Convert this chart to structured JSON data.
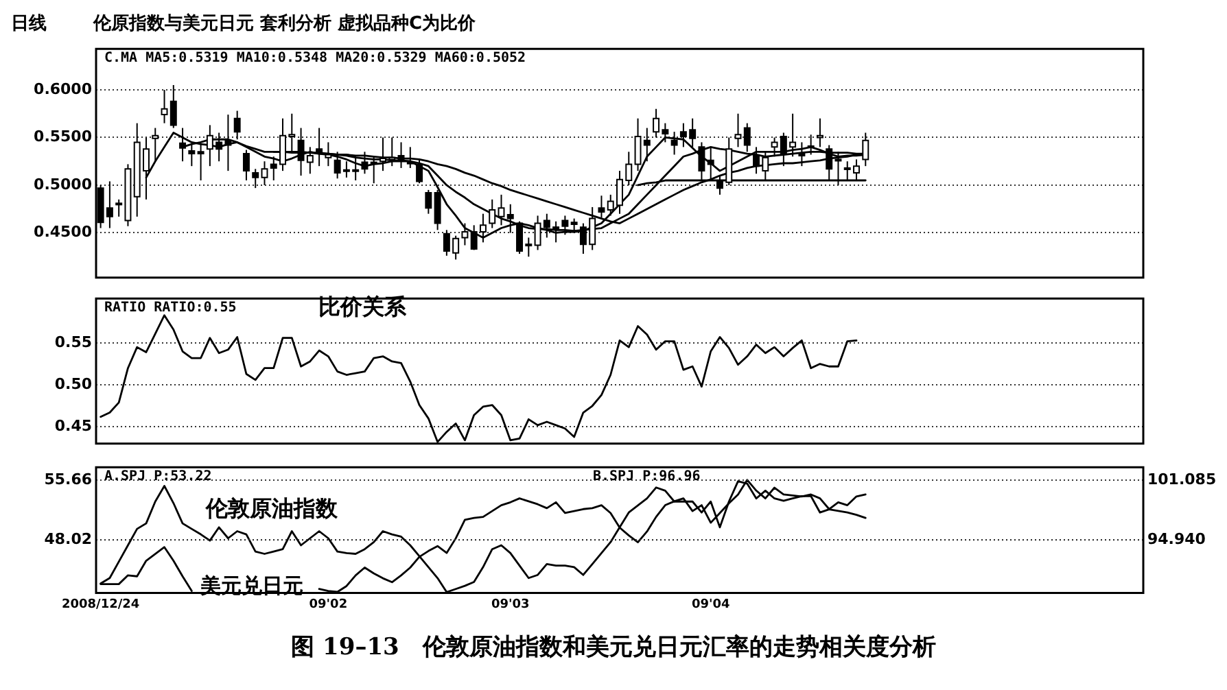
{
  "chart_data": [
    {
      "type": "candlestick",
      "title": "伦原指数与美元日元 套利分析  虚拟品种C为比价",
      "annotations": [
        "日线",
        "C.MA  MA5:0.5319  MA10:0.5348  MA20:0.5329  MA60:0.5052"
      ],
      "color": "#000000",
      "ylim": [
        0.403,
        0.643
      ],
      "yticks": [
        {
          "value": 0.45,
          "label": "0.4500"
        },
        {
          "value": 0.5,
          "label": "0.5000"
        },
        {
          "value": 0.55,
          "label": "0.5500"
        },
        {
          "value": 0.6,
          "label": "0.6000"
        }
      ],
      "grid": "y",
      "tick_labels": "y",
      "categories": [
        null,
        null,
        null,
        null,
        null,
        null,
        null,
        null,
        null,
        null,
        null,
        null,
        null,
        null,
        null,
        null,
        null,
        null,
        null,
        null,
        null,
        null,
        null,
        null,
        null,
        null,
        null,
        null,
        null,
        null,
        null,
        null,
        null,
        null,
        null,
        null,
        null,
        null,
        null,
        null,
        null,
        null,
        null,
        null,
        null,
        null,
        null,
        null,
        null,
        null,
        null,
        null,
        null,
        null,
        null,
        null,
        null,
        null,
        null,
        null,
        null,
        null,
        null,
        null,
        null,
        null,
        null,
        null,
        null,
        null,
        null,
        null,
        null,
        null,
        null,
        null,
        null,
        null,
        null,
        null,
        null,
        null,
        null,
        null,
        null,
        null,
        null,
        null,
        null,
        null,
        null,
        null,
        null,
        null,
        null,
        null,
        null,
        null,
        null,
        null,
        null,
        null,
        null,
        null,
        null,
        null,
        null,
        null,
        null,
        null,
        null,
        null,
        null,
        null,
        null
      ],
      "ohlc": [
        [
          0.497,
          0.5,
          0.455,
          0.461
        ],
        [
          0.476,
          0.504,
          0.455,
          0.467
        ],
        [
          0.481,
          0.485,
          0.467,
          0.48
        ],
        [
          0.463,
          0.522,
          0.457,
          0.517
        ],
        [
          0.488,
          0.565,
          0.467,
          0.545
        ],
        [
          0.515,
          0.55,
          0.485,
          0.538
        ],
        [
          0.549,
          0.56,
          0.525,
          0.552
        ],
        [
          0.574,
          0.6,
          0.565,
          0.58
        ],
        [
          0.588,
          0.605,
          0.56,
          0.563
        ],
        [
          0.544,
          0.56,
          0.525,
          0.539
        ],
        [
          0.536,
          0.543,
          0.52,
          0.533
        ],
        [
          0.535,
          0.543,
          0.505,
          0.533
        ],
        [
          0.538,
          0.563,
          0.52,
          0.552
        ],
        [
          0.545,
          0.555,
          0.525,
          0.538
        ],
        [
          0.547,
          0.574,
          0.515,
          0.542
        ],
        [
          0.57,
          0.578,
          0.548,
          0.556
        ],
        [
          0.533,
          0.537,
          0.505,
          0.515
        ],
        [
          0.513,
          0.517,
          0.497,
          0.508
        ],
        [
          0.508,
          0.525,
          0.5,
          0.517
        ],
        [
          0.522,
          0.53,
          0.505,
          0.518
        ],
        [
          0.522,
          0.57,
          0.515,
          0.552
        ],
        [
          0.551,
          0.575,
          0.535,
          0.553
        ],
        [
          0.547,
          0.56,
          0.51,
          0.526
        ],
        [
          0.524,
          0.54,
          0.512,
          0.531
        ],
        [
          0.538,
          0.56,
          0.52,
          0.533
        ],
        [
          0.529,
          0.545,
          0.52,
          0.532
        ],
        [
          0.526,
          0.535,
          0.507,
          0.513
        ],
        [
          0.516,
          0.525,
          0.508,
          0.515
        ],
        [
          0.516,
          0.53,
          0.505,
          0.515
        ],
        [
          0.524,
          0.535,
          0.512,
          0.517
        ],
        [
          0.524,
          0.53,
          0.502,
          0.523
        ],
        [
          0.525,
          0.55,
          0.515,
          0.528
        ],
        [
          0.527,
          0.55,
          0.52,
          0.529
        ],
        [
          0.531,
          0.545,
          0.518,
          0.526
        ],
        [
          0.524,
          0.54,
          0.518,
          0.523
        ],
        [
          0.522,
          0.528,
          0.502,
          0.504
        ],
        [
          0.492,
          0.495,
          0.47,
          0.476
        ],
        [
          0.492,
          0.495,
          0.453,
          0.46
        ],
        [
          0.449,
          0.453,
          0.426,
          0.431
        ],
        [
          0.429,
          0.447,
          0.422,
          0.444
        ],
        [
          0.445,
          0.46,
          0.437,
          0.451
        ],
        [
          0.451,
          0.458,
          0.432,
          0.433
        ],
        [
          0.451,
          0.47,
          0.44,
          0.458
        ],
        [
          0.46,
          0.485,
          0.455,
          0.474
        ],
        [
          0.467,
          0.49,
          0.458,
          0.476
        ],
        [
          0.469,
          0.48,
          0.45,
          0.465
        ],
        [
          0.46,
          0.462,
          0.428,
          0.431
        ],
        [
          0.438,
          0.445,
          0.425,
          0.437
        ],
        [
          0.437,
          0.468,
          0.432,
          0.46
        ],
        [
          0.463,
          0.47,
          0.445,
          0.456
        ],
        [
          0.456,
          0.462,
          0.44,
          0.455
        ],
        [
          0.463,
          0.468,
          0.448,
          0.457
        ],
        [
          0.461,
          0.465,
          0.45,
          0.459
        ],
        [
          0.456,
          0.46,
          0.428,
          0.438
        ],
        [
          0.438,
          0.477,
          0.432,
          0.465
        ],
        [
          0.476,
          0.489,
          0.466,
          0.472
        ],
        [
          0.474,
          0.49,
          0.468,
          0.483
        ],
        [
          0.479,
          0.515,
          0.47,
          0.506
        ],
        [
          0.505,
          0.535,
          0.5,
          0.522
        ],
        [
          0.522,
          0.57,
          0.515,
          0.551
        ],
        [
          0.547,
          0.56,
          0.525,
          0.542
        ],
        [
          0.556,
          0.58,
          0.55,
          0.57
        ],
        [
          0.558,
          0.565,
          0.545,
          0.554
        ],
        [
          0.547,
          0.556,
          0.532,
          0.542
        ],
        [
          0.556,
          0.565,
          0.54,
          0.551
        ],
        [
          0.558,
          0.57,
          0.54,
          0.549
        ],
        [
          0.54,
          0.545,
          0.505,
          0.515
        ],
        [
          0.526,
          0.54,
          0.506,
          0.522
        ],
        [
          0.504,
          0.51,
          0.49,
          0.497
        ],
        [
          0.503,
          0.55,
          0.5,
          0.538
        ],
        [
          0.549,
          0.575,
          0.54,
          0.553
        ],
        [
          0.56,
          0.565,
          0.535,
          0.542
        ],
        [
          0.531,
          0.54,
          0.512,
          0.52
        ],
        [
          0.515,
          0.535,
          0.505,
          0.529
        ],
        [
          0.54,
          0.55,
          0.53,
          0.545
        ],
        [
          0.551,
          0.555,
          0.52,
          0.533
        ],
        [
          0.54,
          0.575,
          0.53,
          0.545
        ],
        [
          0.533,
          0.545,
          0.52,
          0.531
        ],
        [
          0.541,
          0.553,
          0.532,
          0.54
        ],
        [
          0.55,
          0.57,
          0.54,
          0.552
        ],
        [
          0.538,
          0.542,
          0.505,
          0.517
        ],
        [
          0.527,
          0.535,
          0.5,
          0.526
        ],
        [
          0.518,
          0.525,
          0.505,
          0.517
        ],
        [
          0.513,
          0.527,
          0.505,
          0.52
        ],
        [
          0.527,
          0.555,
          0.52,
          0.547
        ],
        null,
        null,
        null,
        null,
        null,
        null,
        null,
        null,
        null,
        null,
        null,
        null,
        null,
        null,
        null,
        null,
        null,
        null,
        null,
        null,
        null,
        null,
        null,
        null,
        null,
        null,
        null,
        null,
        null,
        null
      ],
      "series": [
        {
          "type": "line",
          "color": "#000000",
          "values": [
            null,
            null,
            null,
            null,
            null,
            0.508,
            0.525,
            0.54,
            0.555,
            0.55,
            0.545,
            0.543,
            0.542,
            0.54,
            0.543,
            0.545,
            0.54,
            0.535,
            0.53,
            0.528,
            0.525,
            0.528,
            0.532,
            0.535,
            0.533,
            0.532,
            0.53,
            0.527,
            0.523,
            0.52,
            0.522,
            0.523,
            0.525,
            0.525,
            0.525,
            0.52,
            0.515,
            0.498,
            0.48,
            0.468,
            0.455,
            0.45,
            0.445,
            0.45,
            0.455,
            0.458,
            0.46,
            0.458,
            0.455,
            0.453,
            0.45,
            0.451,
            0.451,
            0.452,
            0.456,
            0.46,
            0.47,
            0.48,
            0.49,
            0.51,
            0.53,
            0.54,
            0.55,
            0.549,
            0.548,
            0.539,
            0.53,
            0.523,
            0.515,
            0.52,
            0.525,
            0.53,
            0.535,
            0.535,
            0.535,
            0.535,
            0.537,
            0.538,
            0.54,
            0.537,
            0.533,
            0.53,
            0.531,
            0.531,
            0.532,
            null,
            null,
            null,
            null,
            null,
            null,
            null,
            null,
            null,
            null,
            null,
            null,
            null,
            null,
            null,
            null,
            null,
            null,
            null,
            null,
            null,
            null,
            null,
            null,
            null,
            null,
            null,
            null,
            null,
            null
          ]
        },
        {
          "type": "line",
          "color": "#000000",
          "values": [
            null,
            null,
            null,
            null,
            null,
            null,
            null,
            null,
            null,
            0.54,
            0.543,
            0.545,
            0.548,
            0.548,
            0.548,
            0.545,
            0.541,
            0.538,
            0.535,
            0.535,
            0.535,
            0.535,
            0.535,
            0.534,
            0.534,
            0.533,
            0.532,
            0.531,
            0.529,
            0.528,
            0.527,
            0.527,
            0.526,
            0.526,
            0.525,
            0.523,
            0.52,
            0.51,
            0.5,
            0.493,
            0.487,
            0.48,
            0.475,
            0.47,
            0.465,
            0.462,
            0.458,
            0.455,
            0.454,
            0.454,
            0.453,
            0.453,
            0.452,
            0.453,
            0.454,
            0.455,
            0.46,
            0.465,
            0.47,
            0.48,
            0.49,
            0.5,
            0.51,
            0.52,
            0.53,
            0.533,
            0.537,
            0.54,
            0.538,
            0.537,
            0.535,
            0.533,
            0.532,
            0.53,
            0.531,
            0.532,
            0.533,
            0.534,
            0.535,
            0.535,
            0.534,
            0.534,
            0.534,
            0.533,
            0.533,
            null,
            null,
            null,
            null,
            null,
            null,
            null,
            null,
            null,
            null,
            null,
            null,
            null,
            null,
            null,
            null,
            null,
            null,
            null,
            null,
            null,
            null,
            null,
            null,
            null,
            null,
            null,
            null,
            null,
            null
          ]
        },
        {
          "type": "line",
          "color": "#000000",
          "values": [
            null,
            null,
            null,
            null,
            null,
            null,
            null,
            null,
            null,
            null,
            null,
            null,
            null,
            null,
            null,
            null,
            null,
            null,
            null,
            0.535,
            0.535,
            0.534,
            0.534,
            0.534,
            0.533,
            0.533,
            0.532,
            0.532,
            0.531,
            0.531,
            0.53,
            0.529,
            0.529,
            0.528,
            0.528,
            0.527,
            0.525,
            0.522,
            0.52,
            0.517,
            0.513,
            0.51,
            0.506,
            0.502,
            0.499,
            0.495,
            0.492,
            0.489,
            0.486,
            0.483,
            0.48,
            0.477,
            0.474,
            0.471,
            0.468,
            0.465,
            0.462,
            0.46,
            0.465,
            0.47,
            0.475,
            0.48,
            0.485,
            0.49,
            0.495,
            0.499,
            0.503,
            0.506,
            0.51,
            0.513,
            0.515,
            0.518,
            0.52,
            0.521,
            0.522,
            0.523,
            0.523,
            0.524,
            0.525,
            0.526,
            0.528,
            0.529,
            0.53,
            0.532,
            0.533,
            null,
            null,
            null,
            null,
            null,
            null,
            null,
            null,
            null,
            null,
            null,
            null,
            null,
            null,
            null,
            null,
            null,
            null,
            null,
            null,
            null,
            null,
            null,
            null,
            null,
            null,
            null,
            null,
            null,
            null
          ]
        },
        {
          "type": "line",
          "color": "#000000",
          "values": [
            null,
            null,
            null,
            null,
            null,
            null,
            null,
            null,
            null,
            null,
            null,
            null,
            null,
            null,
            null,
            null,
            null,
            null,
            null,
            null,
            null,
            null,
            null,
            null,
            null,
            null,
            null,
            null,
            null,
            null,
            null,
            null,
            null,
            null,
            null,
            null,
            null,
            null,
            null,
            null,
            null,
            null,
            null,
            null,
            null,
            null,
            null,
            null,
            null,
            null,
            null,
            null,
            null,
            null,
            null,
            null,
            null,
            null,
            null,
            0.5,
            0.502,
            0.503,
            0.505,
            0.505,
            0.505,
            0.505,
            0.505,
            0.505,
            0.505,
            0.505,
            0.505,
            0.505,
            0.505,
            0.505,
            0.505,
            0.505,
            0.505,
            0.505,
            0.505,
            0.505,
            0.505,
            0.505,
            0.505,
            0.505,
            0.505,
            null,
            null,
            null,
            null,
            null,
            null,
            null,
            null,
            null,
            null,
            null,
            null,
            null,
            null,
            null,
            null,
            null,
            null,
            null,
            null,
            null,
            null,
            null,
            null,
            null,
            null,
            null,
            null,
            null,
            null
          ]
        }
      ]
    },
    {
      "type": "line",
      "annotations": [
        "RATIO  RATIO:0.55",
        "比价关系"
      ],
      "ylim": [
        0.43,
        0.603
      ],
      "yticks": [
        {
          "value": 0.45,
          "label": "0.45"
        },
        {
          "value": 0.5,
          "label": "0.50"
        },
        {
          "value": 0.55,
          "label": "0.55"
        }
      ],
      "grid": "y",
      "tick_labels": "y",
      "categories": [
        null,
        null,
        null,
        null,
        null,
        null,
        null,
        null,
        null,
        null,
        null,
        null,
        null,
        null,
        null,
        null,
        null,
        null,
        null,
        null,
        null,
        null,
        null,
        null,
        null,
        null,
        null,
        null,
        null,
        null,
        null,
        null,
        null,
        null,
        null,
        null,
        null,
        null,
        null,
        null,
        null,
        null,
        null,
        null,
        null,
        null,
        null,
        null,
        null,
        null,
        null,
        null,
        null,
        null,
        null,
        null,
        null,
        null,
        null,
        null,
        null,
        null,
        null,
        null,
        null,
        null,
        null,
        null,
        null,
        null,
        null,
        null,
        null,
        null,
        null,
        null,
        null,
        null,
        null,
        null,
        null,
        null,
        null,
        null,
        null,
        null,
        null,
        null,
        null,
        null,
        null,
        null,
        null,
        null,
        null,
        null,
        null,
        null,
        null,
        null,
        null,
        null,
        null,
        null,
        null,
        null,
        null,
        null,
        null,
        null,
        null,
        null,
        null,
        null,
        null
      ],
      "series": [
        {
          "color": "#000000",
          "values": [
            0.462,
            0.467,
            0.479,
            0.52,
            0.545,
            0.539,
            0.561,
            0.583,
            0.566,
            0.54,
            0.532,
            0.532,
            0.556,
            0.538,
            0.542,
            0.557,
            0.513,
            0.506,
            0.52,
            0.52,
            0.556,
            0.556,
            0.522,
            0.528,
            0.541,
            0.534,
            0.516,
            0.512,
            0.514,
            0.516,
            0.532,
            0.534,
            0.528,
            0.526,
            0.504,
            0.476,
            0.46,
            0.432,
            0.444,
            0.454,
            0.434,
            0.464,
            0.474,
            0.476,
            0.464,
            0.434,
            0.436,
            0.459,
            0.452,
            0.456,
            0.452,
            0.448,
            0.438,
            0.467,
            0.475,
            0.488,
            0.512,
            0.553,
            0.545,
            0.57,
            0.56,
            0.542,
            0.552,
            0.552,
            0.518,
            0.522,
            0.498,
            0.54,
            0.557,
            0.544,
            0.524,
            0.534,
            0.548,
            0.538,
            0.545,
            0.534,
            0.544,
            0.553,
            0.52,
            0.525,
            0.522,
            0.522,
            0.552,
            0.553,
            null,
            null,
            null,
            null,
            null,
            null,
            null,
            null,
            null,
            null,
            null,
            null,
            null,
            null,
            null,
            null,
            null,
            null,
            null,
            null,
            null,
            null,
            null,
            null,
            null,
            null,
            null,
            null,
            null,
            null,
            null
          ]
        }
      ]
    },
    {
      "type": "line",
      "annotations": [
        "A.SPJ  P:53.22",
        "B.SPJ  P:96.96",
        "图 19–13　伦敦原油指数和美元兑日元汇率的走势相关度分析"
      ],
      "ylim": [
        41.2,
        57.3
      ],
      "yticks": [
        48.02,
        55.66
      ],
      "y2lim": [
        89.5,
        102.4
      ],
      "y2ticks": [
        {
          "value": 94.94,
          "label": "94.940"
        },
        101.085
      ],
      "grid": "y",
      "categories": [
        "2008/12/24",
        null,
        null,
        null,
        null,
        null,
        null,
        null,
        null,
        null,
        null,
        null,
        null,
        null,
        null,
        null,
        null,
        null,
        null,
        null,
        null,
        null,
        null,
        null,
        null,
        "09'02",
        null,
        null,
        null,
        null,
        null,
        null,
        null,
        null,
        null,
        null,
        null,
        null,
        null,
        null,
        null,
        null,
        null,
        null,
        null,
        "09'03",
        null,
        null,
        null,
        null,
        null,
        null,
        null,
        null,
        null,
        null,
        null,
        null,
        null,
        null,
        null,
        null,
        null,
        null,
        null,
        null,
        null,
        "09'04",
        null,
        null,
        null,
        null,
        null,
        null,
        null,
        null,
        null,
        null,
        null,
        null,
        null,
        null,
        null,
        null,
        null,
        null,
        null,
        null,
        null,
        null,
        null,
        null,
        null,
        null,
        null,
        null,
        null,
        null,
        null,
        null,
        null,
        null,
        null,
        null,
        null,
        null,
        null,
        null,
        null,
        null,
        null,
        null,
        null,
        null,
        null
      ],
      "series": [
        {
          "name": "伦敦原油指数",
          "color": "#000000",
          "values": [
            42.4,
            43.1,
            45.2,
            47.3,
            49.4,
            50.1,
            52.9,
            54.9,
            52.7,
            50.1,
            49.4,
            48.7,
            47.9,
            49.6,
            48.2,
            49.1,
            48.7,
            46.5,
            46.2,
            46.5,
            46.8,
            49.1,
            47.3,
            48.2,
            49.1,
            48.2,
            46.5,
            46.3,
            46.2,
            46.8,
            47.7,
            49.1,
            48.7,
            48.4,
            47.3,
            45.9,
            44.5,
            43.1,
            41.3,
            41.7,
            42.1,
            42.6,
            44.5,
            46.8,
            47.3,
            46.3,
            44.7,
            43.1,
            43.5,
            44.9,
            44.7,
            44.7,
            44.5,
            43.5,
            44.9,
            46.3,
            47.7,
            49.6,
            51.5,
            52.4,
            53.3,
            54.7,
            54.3,
            52.9,
            52.9,
            52.9,
            51.5,
            52.9,
            49.6,
            52.9,
            55.5,
            55.2,
            53.3,
            54.3,
            53.3,
            53,
            53.3,
            53.6,
            53.6,
            51.5,
            51.9,
            51.7,
            51.5,
            51.2,
            50.8,
            null,
            null,
            null,
            null,
            null,
            null,
            null,
            null,
            null,
            null,
            null,
            null,
            null,
            null,
            null,
            null,
            null,
            null,
            null,
            null,
            null,
            null,
            null,
            null,
            null,
            null,
            null,
            null,
            null,
            null
          ]
        },
        {
          "name": "美元兑日元",
          "color": "#000000",
          "axis": "y2",
          "values": [
            90.4,
            90.4,
            90.4,
            91.3,
            91.2,
            92.8,
            93.5,
            94.2,
            92.8,
            91.2,
            89.7,
            null,
            null,
            null,
            null,
            null,
            null,
            null,
            null,
            null,
            null,
            null,
            null,
            null,
            89.9,
            89.7,
            89.6,
            90.2,
            91.3,
            92.1,
            91.5,
            91,
            90.6,
            91.3,
            92.1,
            93.2,
            93.8,
            94.3,
            93.6,
            95.1,
            97,
            97.2,
            97.3,
            97.9,
            98.5,
            98.8,
            99.2,
            98.9,
            98.6,
            98.2,
            98.8,
            97.7,
            97.9,
            98.1,
            98.2,
            98.5,
            97.7,
            96.2,
            95.4,
            94.7,
            95.8,
            97.3,
            98.5,
            98.9,
            99.2,
            97.9,
            98.5,
            96.7,
            97.7,
            98.7,
            99.6,
            101.1,
            100,
            99.2,
            100.3,
            99.6,
            99.5,
            99.4,
            99.6,
            99.2,
            98.1,
            98.8,
            98.5,
            99.4,
            99.6,
            null,
            null,
            null,
            null,
            null,
            null,
            null,
            null,
            null,
            null,
            null,
            null,
            null,
            null,
            null,
            null,
            null,
            null,
            null,
            null,
            null,
            null,
            null,
            null,
            null,
            null,
            null,
            null,
            null,
            null
          ]
        }
      ]
    }
  ]
}
